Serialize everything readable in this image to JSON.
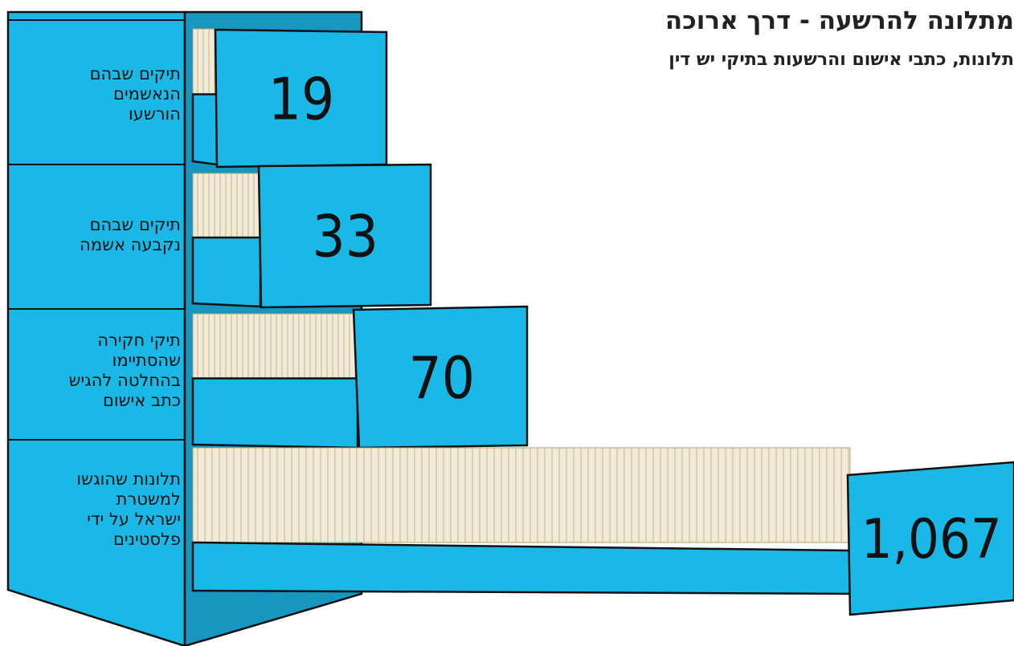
{
  "chart_data": {
    "type": "drawer",
    "title": "מתלונה להרשעה - דרך ארוכה",
    "subtitle": "תלונות, כתבי אישום והרשעות בתיקי יש דין",
    "categories": [
      "תיקים שבהם\nהנאשמים\nהורשעו",
      "תיקים שבהם\nנקבעה אשמה",
      "תיקי חקירה\nשהסתיימו\nבהחלטה להגיש\nכתב אישום",
      "תלונות שהוגשו\nלמשטרת\nישראל על ידי\nפלסטינים"
    ],
    "values": [
      19,
      33,
      70,
      1067
    ],
    "value_labels": [
      "19",
      "33",
      "70",
      "1,067"
    ],
    "color": "#1ab8e6"
  }
}
